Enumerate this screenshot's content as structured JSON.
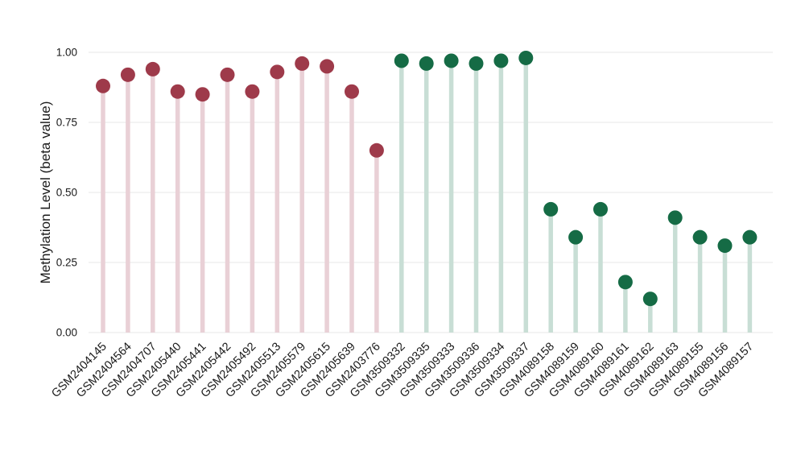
{
  "chart_data": {
    "type": "lollipop",
    "title": "",
    "xlabel": "",
    "ylabel": "Methylation Level (beta value)",
    "ylim": [
      0,
      1.0
    ],
    "yticks": [
      0,
      0.25,
      0.5,
      0.75,
      1.0
    ],
    "ytick_labels": [
      "0.00",
      "0.25",
      "0.50",
      "0.75",
      "1.00"
    ],
    "grid": "horizontal",
    "legend": "none",
    "categories": [
      "GSM2404145",
      "GSM2404564",
      "GSM2404707",
      "GSM2405440",
      "GSM2405441",
      "GSM2405442",
      "GSM2405492",
      "GSM2405513",
      "GSM2405579",
      "GSM2405615",
      "GSM2405639",
      "GSM2403776",
      "GSM3509332",
      "GSM3509335",
      "GSM3509333",
      "GSM3509336",
      "GSM3509334",
      "GSM3509337",
      "GSM4089158",
      "GSM4089159",
      "GSM4089160",
      "GSM4089161",
      "GSM4089162",
      "GSM4089163",
      "GSM4089155",
      "GSM4089156",
      "GSM4089157"
    ],
    "values": [
      0.88,
      0.92,
      0.94,
      0.86,
      0.85,
      0.92,
      0.86,
      0.93,
      0.96,
      0.95,
      0.86,
      0.65,
      0.97,
      0.96,
      0.97,
      0.96,
      0.97,
      0.98,
      0.44,
      0.34,
      0.44,
      0.18,
      0.12,
      0.41,
      0.34,
      0.31,
      0.34
    ],
    "groups": [
      "red",
      "red",
      "red",
      "red",
      "red",
      "red",
      "red",
      "red",
      "red",
      "red",
      "red",
      "red",
      "green",
      "green",
      "green",
      "green",
      "green",
      "green",
      "green",
      "green",
      "green",
      "green",
      "green",
      "green",
      "green",
      "green",
      "green"
    ],
    "colors": {
      "red_point": "#9e3a4a",
      "red_stem": "#e9d0d6",
      "green_point": "#156b45",
      "green_stem": "#c8ded5",
      "grid": "#ececec",
      "text": "#1a1a1a",
      "background": "#ffffff"
    }
  }
}
